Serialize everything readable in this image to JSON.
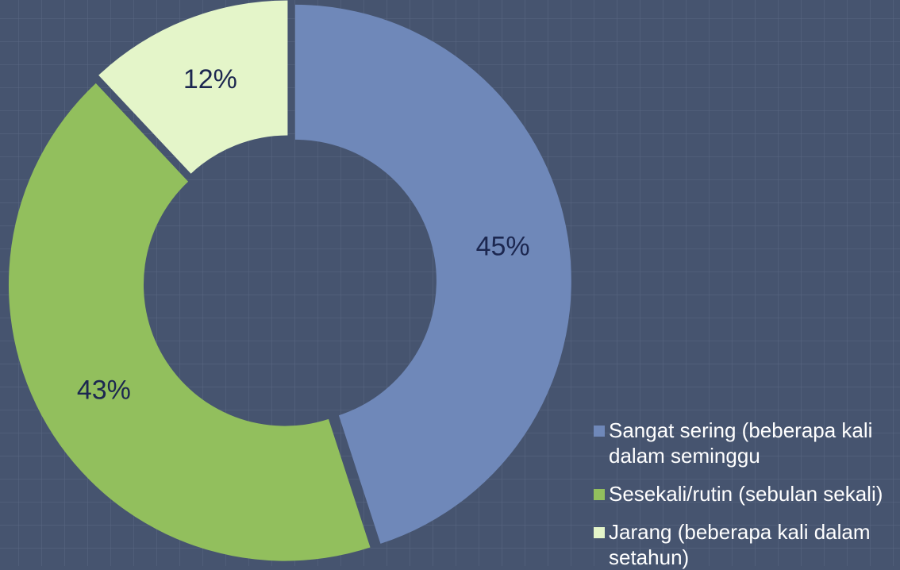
{
  "chart_data": {
    "type": "pie",
    "categories": [
      "Sangat sering (beberapa kali dalam seminggu",
      "Sesekali/rutin (sebulan sekali)",
      "Jarang (beberapa kali dalam setahun)"
    ],
    "values": [
      45,
      43,
      12
    ],
    "value_labels": [
      "45%",
      "43%",
      "12%"
    ],
    "colors": [
      "#6f88b9",
      "#92bf5d",
      "#e4f5c9"
    ],
    "legend": "bottom-right"
  }
}
